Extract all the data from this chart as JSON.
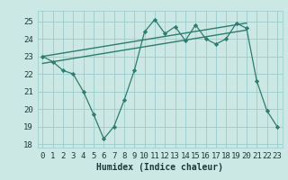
{
  "xlabel": "Humidex (Indice chaleur)",
  "background_color": "#cce8e4",
  "grid_color": "#99cccc",
  "line_color": "#2d7d6e",
  "xlim": [
    -0.5,
    23.5
  ],
  "ylim": [
    17.8,
    25.6
  ],
  "yticks": [
    18,
    19,
    20,
    21,
    22,
    23,
    24,
    25
  ],
  "xticks": [
    0,
    1,
    2,
    3,
    4,
    5,
    6,
    7,
    8,
    9,
    10,
    11,
    12,
    13,
    14,
    15,
    16,
    17,
    18,
    19,
    20,
    21,
    22,
    23
  ],
  "series1_x": [
    0,
    1,
    2,
    3,
    4,
    5,
    6,
    7,
    8,
    9,
    10,
    11,
    12,
    13,
    14,
    15,
    16,
    17,
    18,
    19,
    20,
    21,
    22,
    23
  ],
  "series1_y": [
    23.0,
    22.7,
    22.2,
    22.0,
    21.0,
    19.7,
    18.3,
    19.0,
    20.5,
    22.2,
    24.4,
    25.1,
    24.3,
    24.7,
    23.9,
    24.8,
    24.0,
    23.7,
    24.0,
    24.9,
    24.6,
    21.6,
    19.9,
    19.0
  ],
  "series2_x": [
    0,
    20
  ],
  "series2_y": [
    23.0,
    24.9
  ],
  "series3_x": [
    0,
    20
  ],
  "series3_y": [
    22.6,
    24.5
  ],
  "xlabel_fontsize": 7,
  "tick_fontsize": 6.5
}
